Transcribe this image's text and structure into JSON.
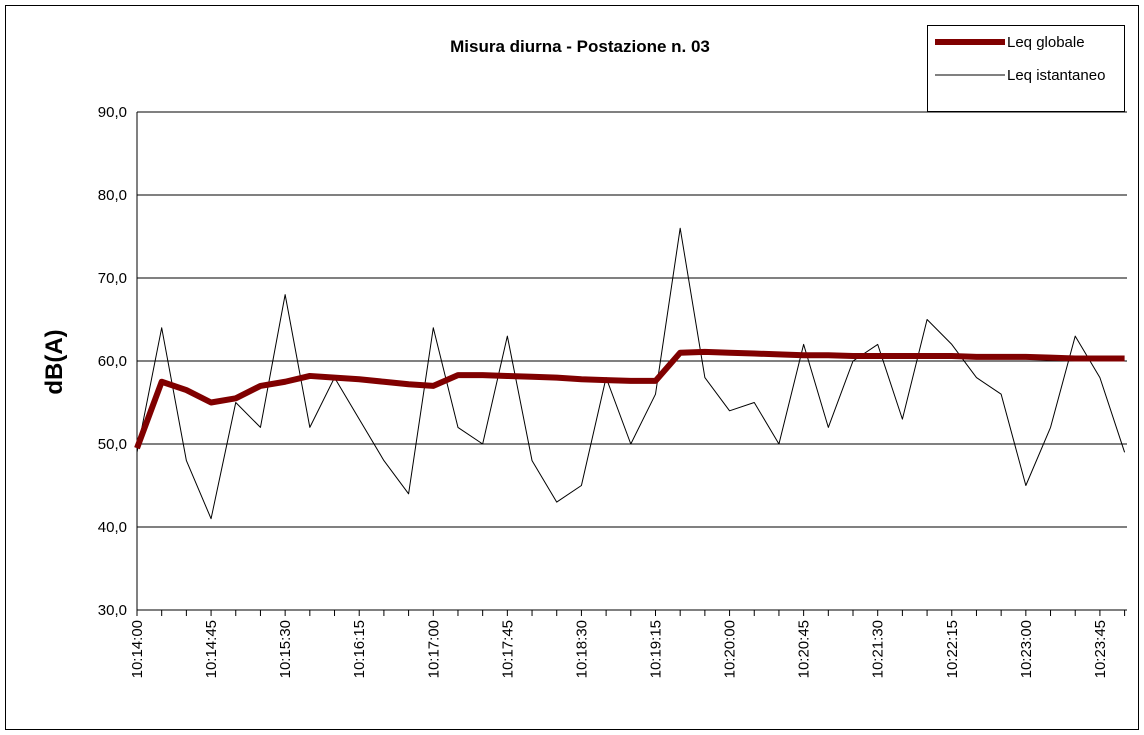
{
  "chart_data": {
    "type": "line",
    "title": "Misura diurna - Postazione n. 03",
    "y_label": "dB(A)",
    "categories": [
      "10:14:00",
      null,
      null,
      "10:14:45",
      null,
      null,
      "10:15:30",
      null,
      null,
      "10:16:15",
      null,
      null,
      "10:17:00",
      null,
      null,
      "10:17:45",
      null,
      null,
      "10:18:30",
      null,
      null,
      "10:19:15",
      null,
      null,
      "10:20:00",
      null,
      null,
      "10:20:45",
      null,
      null,
      "10:21:30",
      null,
      null,
      "10:22:15",
      null,
      null,
      "10:23:00",
      null,
      null,
      "10:23:45",
      null
    ],
    "series": [
      {
        "name": "Leq globale",
        "color": "#800000",
        "values": [
          49.5,
          57.5,
          56.5,
          55,
          55.5,
          57,
          57.5,
          58.2,
          58,
          57.8,
          57.5,
          57.2,
          57,
          58.3,
          58.3,
          58.2,
          58.1,
          58,
          57.8,
          57.7,
          57.6,
          57.6,
          61,
          61.1,
          61,
          60.9,
          60.8,
          60.7,
          60.7,
          60.6,
          60.6,
          60.6,
          60.6,
          60.6,
          60.5,
          60.5,
          60.5,
          60.4,
          60.3,
          60.3,
          60.3
        ]
      },
      {
        "name": "Leq istantaneo",
        "color": "#000000",
        "values": [
          49,
          64,
          48,
          41,
          55,
          52,
          68,
          52,
          58,
          53,
          48,
          44,
          64,
          52,
          50,
          63,
          48,
          43,
          45,
          58,
          50,
          56,
          76,
          58,
          54,
          55,
          50,
          62,
          52,
          60,
          62,
          53,
          65,
          62,
          58,
          56,
          45,
          52,
          63,
          58,
          49
        ]
      }
    ],
    "ylim": [
      30,
      90
    ],
    "yticks": [
      {
        "value": 30,
        "label": "30,0"
      },
      {
        "value": 40,
        "label": "40,0"
      },
      {
        "value": 50,
        "label": "50,0"
      },
      {
        "value": 60,
        "label": "60,0"
      },
      {
        "value": 70,
        "label": "70,0"
      },
      {
        "value": 80,
        "label": "80,0"
      },
      {
        "value": 90,
        "label": "90,0"
      }
    ],
    "grid": true,
    "legend": "top-right"
  }
}
